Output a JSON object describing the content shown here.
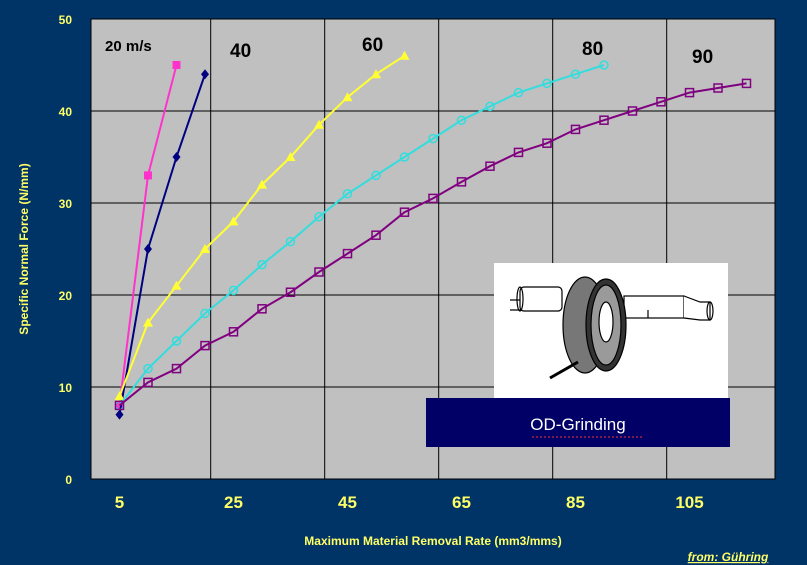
{
  "chart_data": {
    "type": "line",
    "xlabel": "Maximum Material Removal Rate (mm3/mms)",
    "ylabel": "Specific Normal Force (N/mm)",
    "xlim": [
      0,
      120
    ],
    "ylim": [
      0,
      50
    ],
    "xticks": [
      5,
      25,
      45,
      65,
      85,
      105
    ],
    "yticks": [
      0,
      10,
      20,
      30,
      40,
      50
    ],
    "grid": true,
    "series": [
      {
        "name": "20 m/s",
        "label": "20 m/s",
        "color": "#ff33cc",
        "marker": "square-filled",
        "points": [
          [
            5,
            8
          ],
          [
            10,
            33
          ],
          [
            15,
            45
          ]
        ]
      },
      {
        "name": "40",
        "label": "40",
        "color": "#000080",
        "marker": "diamond",
        "points": [
          [
            5,
            7
          ],
          [
            10,
            25
          ],
          [
            15,
            35
          ],
          [
            20,
            44
          ]
        ]
      },
      {
        "name": "60",
        "label": "60",
        "color": "#ffff33",
        "marker": "triangle",
        "points": [
          [
            5,
            9
          ],
          [
            10,
            17
          ],
          [
            15,
            21
          ],
          [
            20,
            25
          ],
          [
            25,
            28
          ],
          [
            30,
            32
          ],
          [
            35,
            35
          ],
          [
            40,
            38.5
          ],
          [
            45,
            41.5
          ],
          [
            50,
            44
          ],
          [
            55,
            46
          ]
        ]
      },
      {
        "name": "80",
        "label": "80",
        "color": "#33dddd",
        "marker": "circle-open",
        "points": [
          [
            5,
            8
          ],
          [
            10,
            12
          ],
          [
            15,
            15
          ],
          [
            20,
            18
          ],
          [
            25,
            20.5
          ],
          [
            30,
            23.3
          ],
          [
            35,
            25.8
          ],
          [
            40,
            28.5
          ],
          [
            45,
            31
          ],
          [
            50,
            33
          ],
          [
            55,
            35
          ],
          [
            60,
            37
          ],
          [
            65,
            39
          ],
          [
            70,
            40.5
          ],
          [
            75,
            42
          ],
          [
            80,
            43
          ],
          [
            85,
            44
          ],
          [
            90,
            45
          ]
        ]
      },
      {
        "name": "90",
        "label": "90",
        "color": "#800080",
        "marker": "square-open",
        "points": [
          [
            5,
            8
          ],
          [
            10,
            10.5
          ],
          [
            15,
            12
          ],
          [
            20,
            14.5
          ],
          [
            25,
            16
          ],
          [
            30,
            18.5
          ],
          [
            35,
            20.3
          ],
          [
            40,
            22.5
          ],
          [
            45,
            24.5
          ],
          [
            50,
            26.5
          ],
          [
            55,
            29
          ],
          [
            60,
            30.5
          ],
          [
            65,
            32.3
          ],
          [
            70,
            34
          ],
          [
            75,
            35.5
          ],
          [
            80,
            36.5
          ],
          [
            85,
            38
          ],
          [
            90,
            39
          ],
          [
            95,
            40
          ],
          [
            100,
            41
          ],
          [
            105,
            42
          ],
          [
            110,
            42.5
          ],
          [
            115,
            43
          ]
        ]
      }
    ]
  },
  "inset": {
    "caption": "OD-Grinding"
  },
  "source": "from: Gühring",
  "colors": {
    "background": "#003366",
    "plot_area": "#c0c0c0",
    "axis_text": "#ffff66",
    "inset_box": "#000066"
  }
}
